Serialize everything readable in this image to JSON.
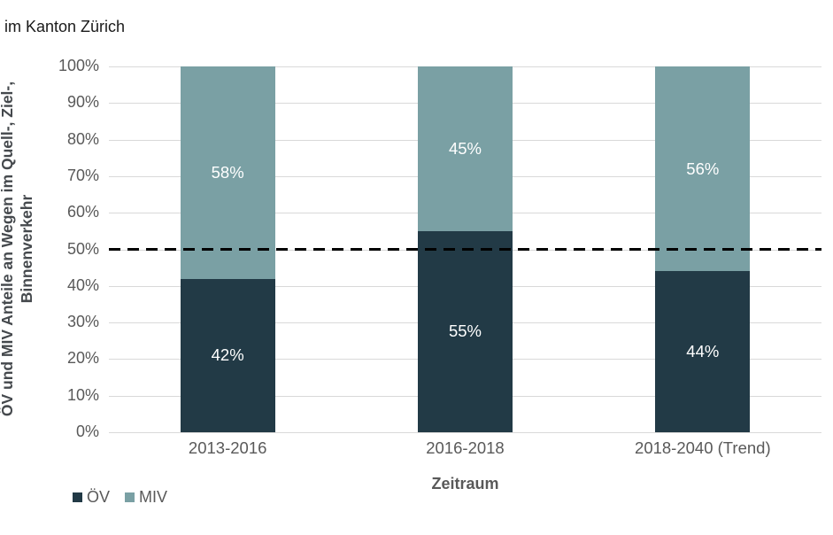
{
  "header": {
    "title": "im Kanton Zürich"
  },
  "chart_data": {
    "type": "bar",
    "stacked": true,
    "title": "im Kanton Zürich",
    "xlabel": "Zeitraum",
    "ylabel": "ÖV und MIV Anteile an Wegen im Quell-, Ziel-, Binnenverkehr",
    "ylabel_lines": {
      "line1": "ÖV und MIV Anteile an Wegen im Quell-, Ziel-,",
      "line2": "Binnenverkehr"
    },
    "categories": [
      "2013-2016",
      "2016-2018",
      "2018-2040 (Trend)"
    ],
    "series": [
      {
        "name": "ÖV",
        "color": "#223a46",
        "values": [
          42,
          55,
          44
        ],
        "labels": [
          "42%",
          "55%",
          "44%"
        ]
      },
      {
        "name": "MIV",
        "color": "#7aa0a4",
        "values": [
          58,
          45,
          56
        ],
        "labels": [
          "58%",
          "45%",
          "56%"
        ]
      }
    ],
    "ylim": [
      0,
      100
    ],
    "yticks": [
      "0%",
      "10%",
      "20%",
      "30%",
      "40%",
      "50%",
      "60%",
      "70%",
      "80%",
      "90%",
      "100%"
    ],
    "grid": true,
    "gridline_color": "#d9d9d9",
    "reference_line": {
      "value": 50,
      "style": "dashed",
      "color": "#000000"
    },
    "legend": {
      "position": "bottom-left",
      "entries": [
        "ÖV",
        "MIV"
      ]
    }
  }
}
